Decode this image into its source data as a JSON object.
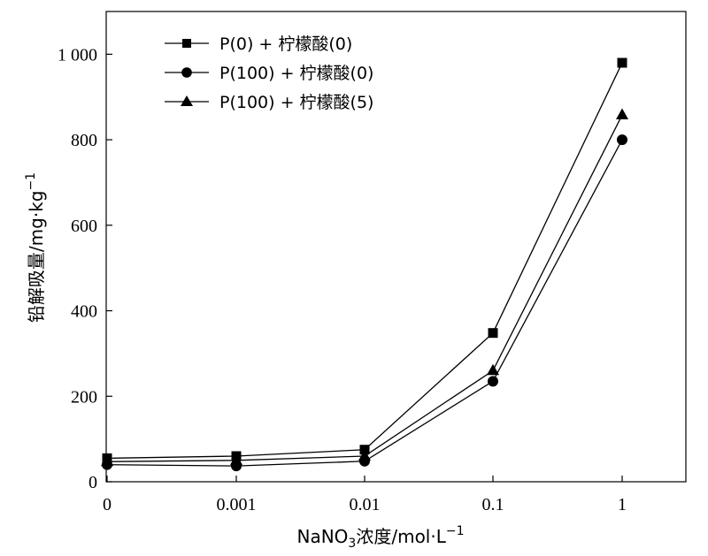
{
  "chart_data": {
    "type": "line",
    "categories": [
      "0",
      "0.001",
      "0.01",
      "0.1",
      "1"
    ],
    "series": [
      {
        "name": "P(0) + 柠檬酸(0)",
        "marker": "square",
        "values": [
          55,
          60,
          75,
          348,
          980
        ]
      },
      {
        "name": "P(100) + 柠檬酸(0)",
        "marker": "circle",
        "values": [
          40,
          37,
          48,
          235,
          800
        ]
      },
      {
        "name": "P(100) + 柠檬酸(5)",
        "marker": "triangle",
        "values": [
          47,
          50,
          60,
          260,
          858
        ]
      }
    ],
    "xlabel": {
      "prefix": "NaNO",
      "subscript": "3",
      "middle": "浓度/mol·L",
      "superscript": "−1"
    },
    "ylabel": {
      "main": "铅解吸量/mg·kg",
      "superscript": "−1"
    },
    "yticks": [
      0,
      200,
      400,
      600,
      800,
      1000
    ],
    "ytick_labels": [
      "0",
      "200",
      "400",
      "600",
      "800",
      "1 000"
    ],
    "ylim": [
      0,
      1100
    ],
    "grid": false,
    "legend_position": "top-left",
    "colors": {
      "line": "#000000",
      "marker": "#000000"
    }
  }
}
